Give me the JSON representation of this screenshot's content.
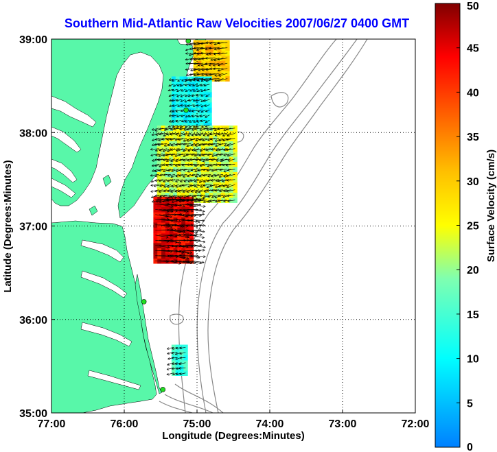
{
  "title": "Southern Mid-Atlantic Raw Velocities 2007/06/27 0400 GMT",
  "xlabel": "Longitude (Degrees:Minutes)",
  "ylabel": "Latitude (Degrees:Minutes)",
  "xticks": [
    {
      "value": -77,
      "label": "77:00"
    },
    {
      "value": -76,
      "label": "76:00"
    },
    {
      "value": -75,
      "label": "75:00"
    },
    {
      "value": -74,
      "label": "74:00"
    },
    {
      "value": -73,
      "label": "73:00"
    },
    {
      "value": -72,
      "label": "72:00"
    }
  ],
  "yticks": [
    {
      "value": 35,
      "label": "35:00"
    },
    {
      "value": 36,
      "label": "36:00"
    },
    {
      "value": 37,
      "label": "37:00"
    },
    {
      "value": 38,
      "label": "38:00"
    },
    {
      "value": 39,
      "label": "39:00"
    }
  ],
  "colorbar": {
    "label": "Surface Velocity (cm/s)",
    "min": 0,
    "max": 50,
    "ticks": [
      {
        "value": 0,
        "label": "0"
      },
      {
        "value": 5,
        "label": "5"
      },
      {
        "value": 10,
        "label": "10"
      },
      {
        "value": 15,
        "label": "15"
      },
      {
        "value": 20,
        "label": "20"
      },
      {
        "value": 25,
        "label": "25"
      },
      {
        "value": 30,
        "label": "30"
      },
      {
        "value": 35,
        "label": "35"
      },
      {
        "value": 40,
        "label": "40"
      },
      {
        "value": 45,
        "label": "45"
      },
      {
        "value": 50,
        "label": "50"
      }
    ]
  },
  "colors": {
    "land": "#58f7a9",
    "title": "#0000ff",
    "station": "#22dd22",
    "bathymetry": "#888888",
    "grid": "#000000"
  },
  "map_data": {
    "xlim": [
      -77,
      -72
    ],
    "ylim": [
      35,
      39
    ],
    "grid": true,
    "stations": [
      {
        "lon": -75.12,
        "lat": 38.98
      },
      {
        "lon": -75.15,
        "lat": 38.24
      },
      {
        "lon": -75.73,
        "lat": 36.19
      },
      {
        "lon": -75.47,
        "lat": 35.25
      }
    ],
    "velocity_regions": [
      {
        "name": "north",
        "lon_range": [
          -75.05,
          -74.58
        ],
        "lat_range": [
          38.55,
          38.97
        ],
        "speed": 30
      },
      {
        "name": "cyan",
        "lon_range": [
          -75.35,
          -74.85
        ],
        "lat_range": [
          38.05,
          38.55
        ],
        "speed": 11
      },
      {
        "name": "middle",
        "lon_range": [
          -75.55,
          -74.5
        ],
        "lat_range": [
          37.25,
          38.05
        ],
        "speed": 23
      },
      {
        "name": "south",
        "lon_range": [
          -75.6,
          -75.05
        ],
        "lat_range": [
          36.6,
          37.3
        ],
        "speed": 45
      },
      {
        "name": "offshore-nc",
        "lon_range": [
          -75.35,
          -75.15
        ],
        "lat_range": [
          35.4,
          35.7
        ],
        "speed": 14
      }
    ]
  }
}
